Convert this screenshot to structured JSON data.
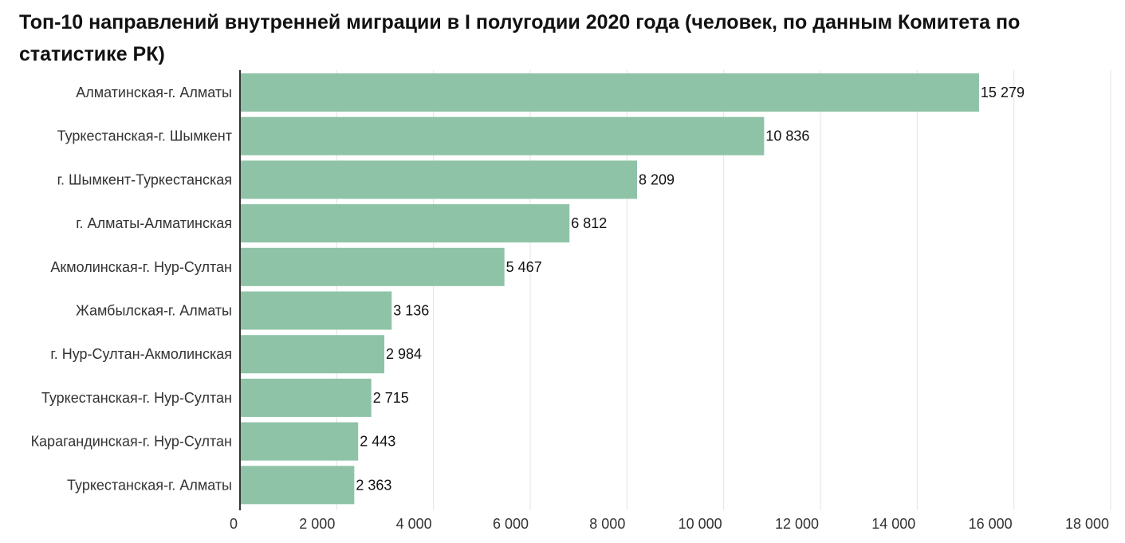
{
  "chart_data": {
    "type": "bar",
    "orientation": "horizontal",
    "title": "Топ-10 направлений внутренней миграции в I полугодии 2020 года (человек, по данным Комитета по статистике РК)",
    "xlabel": "",
    "ylabel": "",
    "xlim": [
      0,
      18000
    ],
    "grid": true,
    "legend": "none",
    "color": "#8fc3a7",
    "categories": [
      "Алматинская-г. Алматы",
      "Туркестанская-г. Шымкент",
      "г. Шымкент-Туркестанская",
      "г. Алматы-Алматинская",
      "Акмолинская-г. Нур-Султан",
      "Жамбылская-г. Алматы",
      "г. Нур-Султан-Акмолинская",
      "Туркестанская-г. Нур-Султан",
      "Карагандинская-г. Нур-Султан",
      "Туркестанская-г. Алматы"
    ],
    "values": [
      15279,
      10836,
      8209,
      6812,
      5467,
      3136,
      2984,
      2715,
      2443,
      2363
    ],
    "value_labels": [
      "15 279",
      "10 836",
      "8 209",
      "6 812",
      "5 467",
      "3 136",
      "2 984",
      "2 715",
      "2 443",
      "2 363"
    ],
    "ticks": [
      0,
      2000,
      4000,
      6000,
      8000,
      10000,
      12000,
      14000,
      16000,
      18000
    ],
    "tick_labels": [
      "0",
      "2 000",
      "4 000",
      "6 000",
      "8 000",
      "10 000",
      "12 000",
      "14 000",
      "16 000",
      "18 000"
    ]
  }
}
